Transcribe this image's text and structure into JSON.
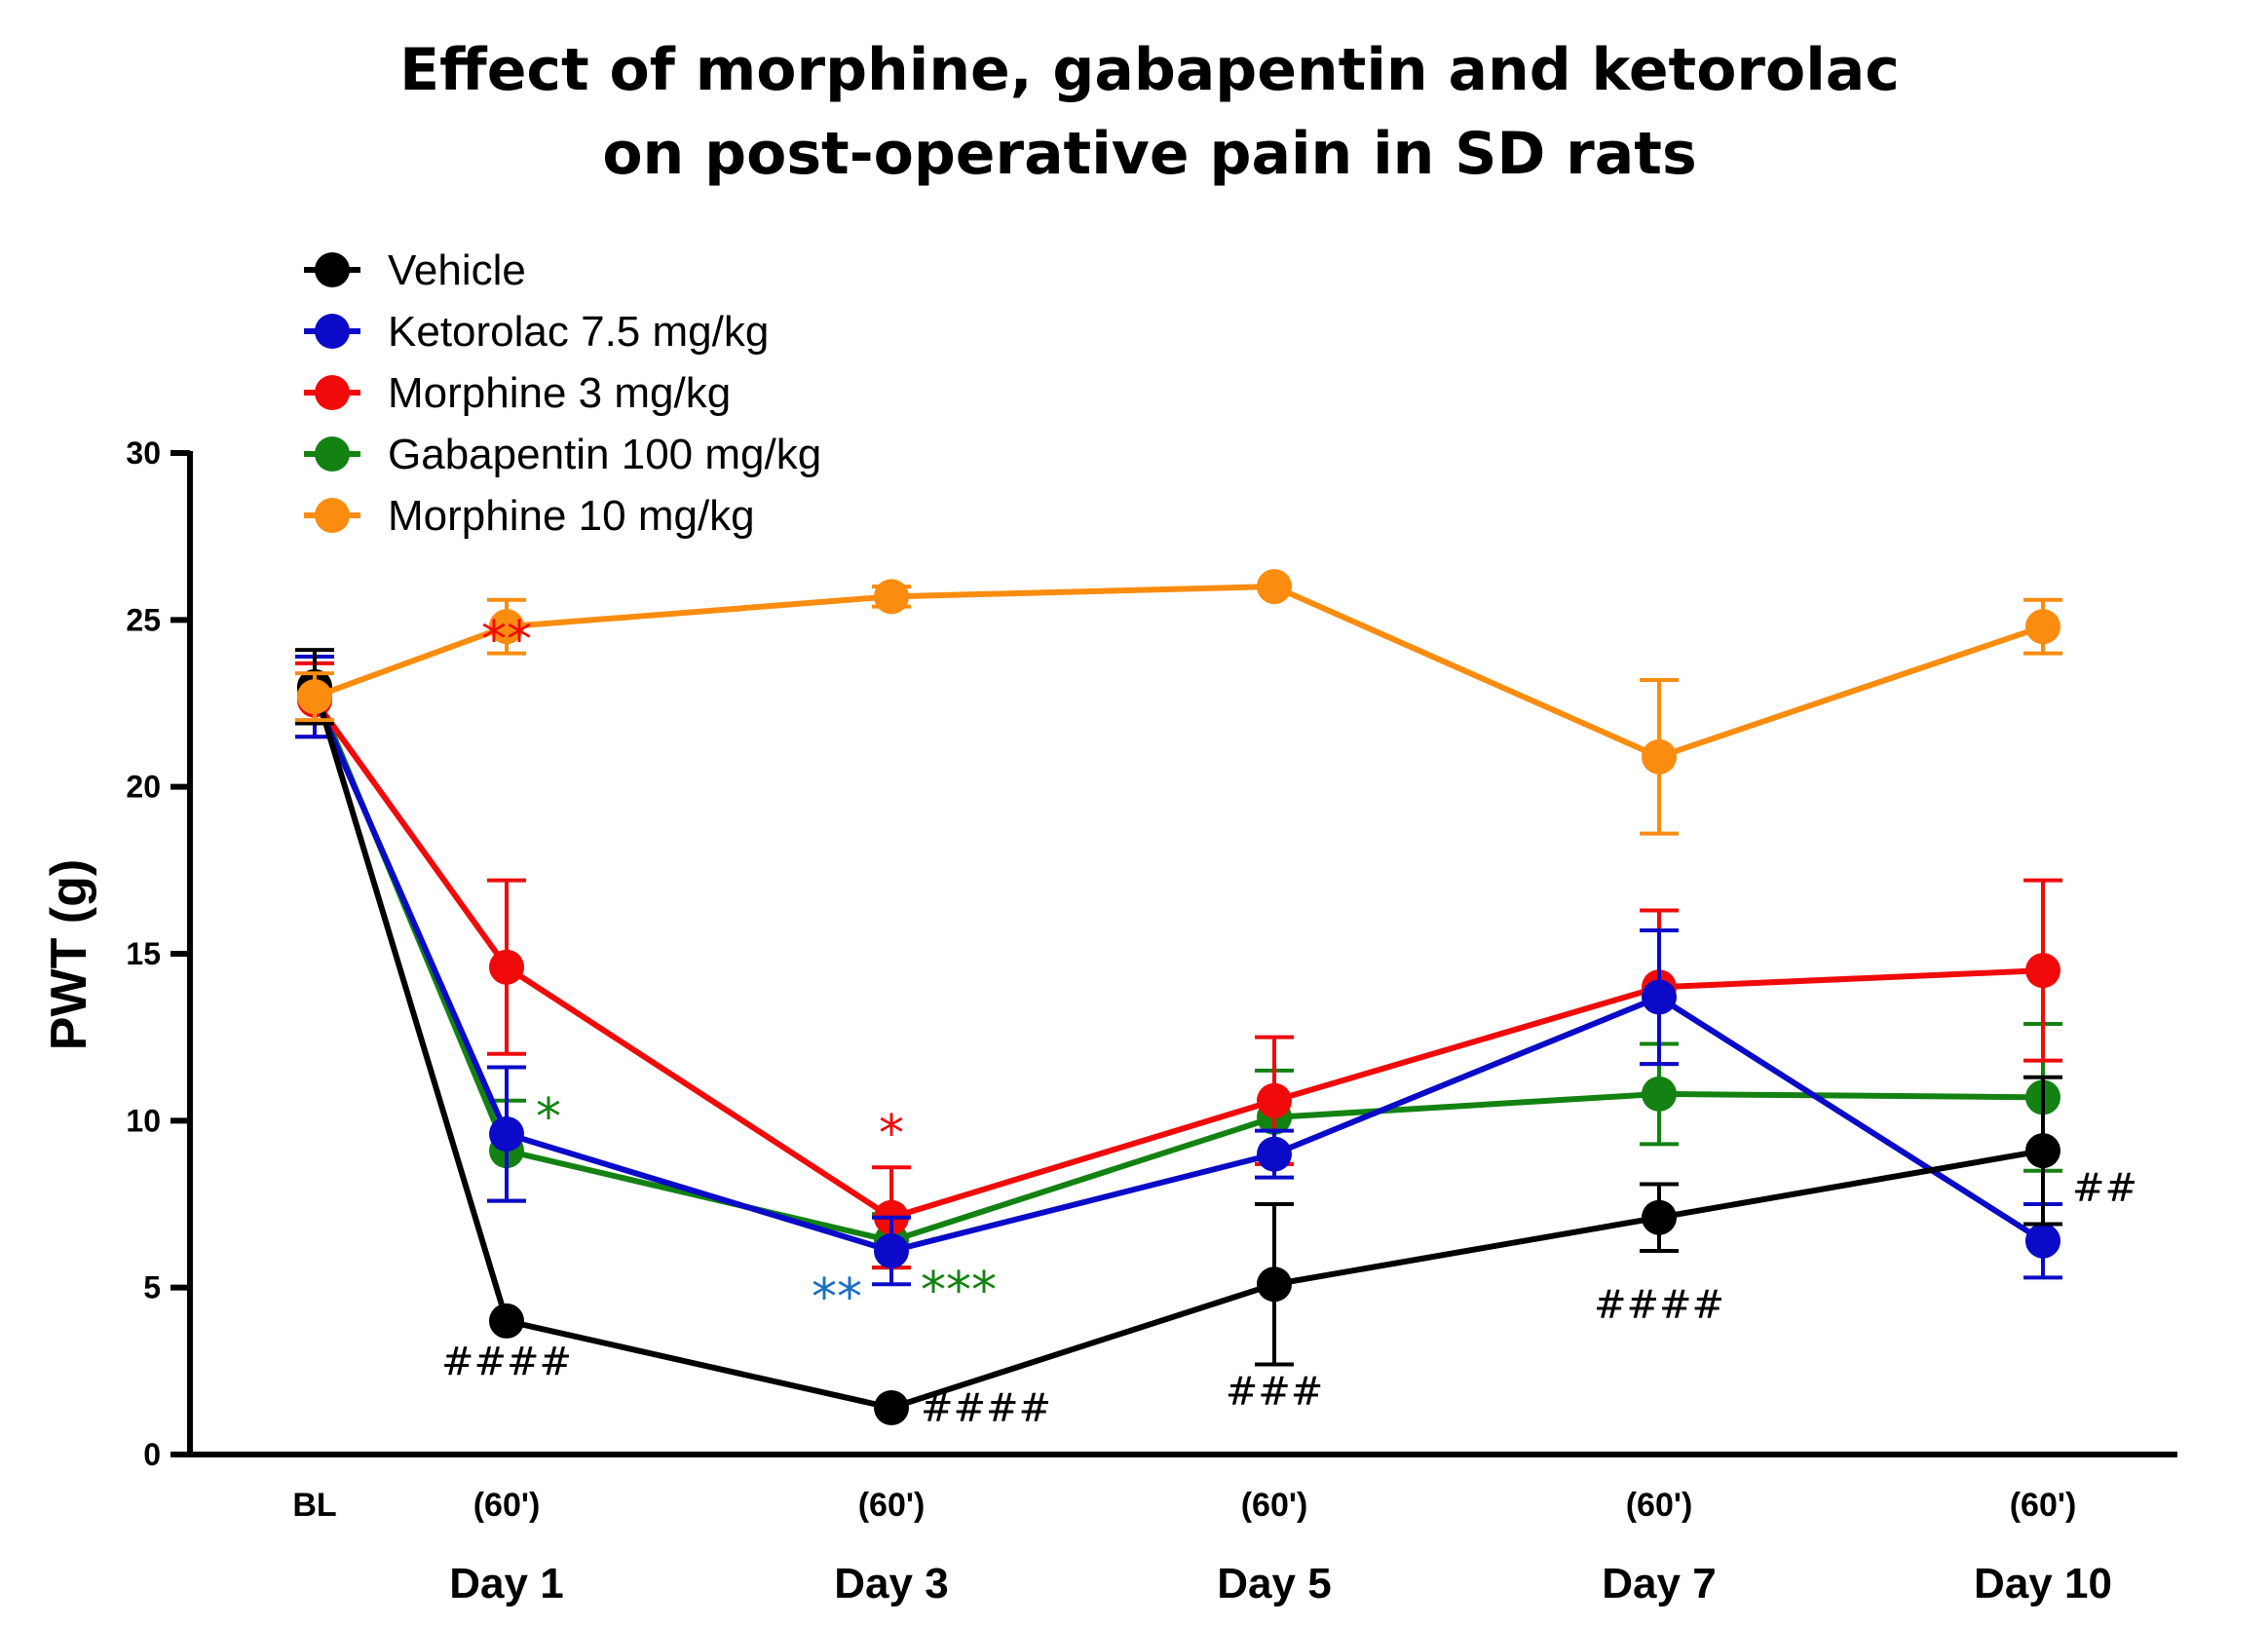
{
  "chart_data": {
    "type": "line",
    "title_lines": [
      "Effect of morphine, gabapentin and ketorolac",
      "on post-operative pain in SD rats"
    ],
    "ylabel": "PWT (g)",
    "xlabel": "",
    "ylim": [
      0,
      30
    ],
    "yticks": [
      0,
      5,
      10,
      15,
      20,
      25,
      30
    ],
    "x_time_labels": [
      "BL",
      "(60')",
      "(60')",
      "(60')",
      "(60')",
      "(60')"
    ],
    "x_day_labels": [
      "",
      "Day 1",
      "Day 3",
      "Day 5",
      "Day 7",
      "Day 10"
    ],
    "legend_position": "top-left",
    "grid": false,
    "series": [
      {
        "name": "Vehicle",
        "color": "#000000",
        "values": [
          23.0,
          4.0,
          1.4,
          5.1,
          7.1,
          9.1
        ],
        "err": [
          1.1,
          0.0,
          0.0,
          2.4,
          1.0,
          2.2
        ]
      },
      {
        "name": "Ketorolac 7.5 mg/kg",
        "color": "#0a0ac8",
        "values": [
          22.7,
          9.6,
          6.1,
          9.0,
          13.7,
          6.4
        ],
        "err": [
          1.2,
          2.0,
          1.0,
          0.7,
          2.0,
          1.1
        ]
      },
      {
        "name": "Morphine 3 mg/kg",
        "color": "#f00a0a",
        "values": [
          22.6,
          14.6,
          7.1,
          10.6,
          14.0,
          14.5
        ],
        "err": [
          1.1,
          2.6,
          1.5,
          1.9,
          2.3,
          2.7
        ]
      },
      {
        "name": "Gabapentin 100 mg/kg",
        "color": "#138212",
        "values": [
          22.9,
          9.1,
          6.4,
          10.1,
          10.8,
          10.7
        ],
        "err": [
          1.0,
          1.5,
          0.8,
          1.4,
          1.5,
          2.2
        ]
      },
      {
        "name": "Morphine 10 mg/kg",
        "color": "#fa8c0f",
        "values": [
          22.7,
          24.8,
          25.7,
          26.0,
          20.9,
          24.8
        ],
        "err": [
          0.7,
          0.8,
          0.3,
          0.0,
          2.3,
          0.8
        ]
      }
    ],
    "annotations": [
      {
        "text": "####",
        "x_index": 1,
        "y": 2.4,
        "anchor": "middle",
        "color": "#000000",
        "kind": "hash"
      },
      {
        "text": "####",
        "x_index": 2,
        "y": 1.0,
        "anchor": "start",
        "color": "#000000",
        "kind": "hash"
      },
      {
        "text": "###",
        "x_index": 3,
        "y": 1.5,
        "anchor": "middle",
        "color": "#000000",
        "kind": "hash"
      },
      {
        "text": "####",
        "x_index": 4,
        "y": 4.1,
        "anchor": "middle",
        "color": "#000000",
        "kind": "hash"
      },
      {
        "text": "##",
        "x_index": 5,
        "y": 7.6,
        "anchor": "start",
        "color": "#000000",
        "kind": "hash"
      },
      {
        "text": "*",
        "x_index": 1,
        "y": 9.6,
        "anchor": "start",
        "color": "#138212",
        "kind": "star"
      },
      {
        "text": "**",
        "x_index": 1,
        "y": 23.9,
        "anchor": "middle",
        "color": "#f00a0a",
        "kind": "star"
      },
      {
        "text": "*",
        "x_index": 2,
        "y": 9.1,
        "anchor": "middle",
        "color": "#f00a0a",
        "kind": "star"
      },
      {
        "text": "**",
        "x_index": 2,
        "y": 4.2,
        "anchor": "end",
        "color": "#1a6fc2",
        "kind": "star"
      },
      {
        "text": "***",
        "x_index": 2,
        "y": 4.4,
        "anchor": "start",
        "color": "#138212",
        "kind": "star"
      }
    ]
  }
}
